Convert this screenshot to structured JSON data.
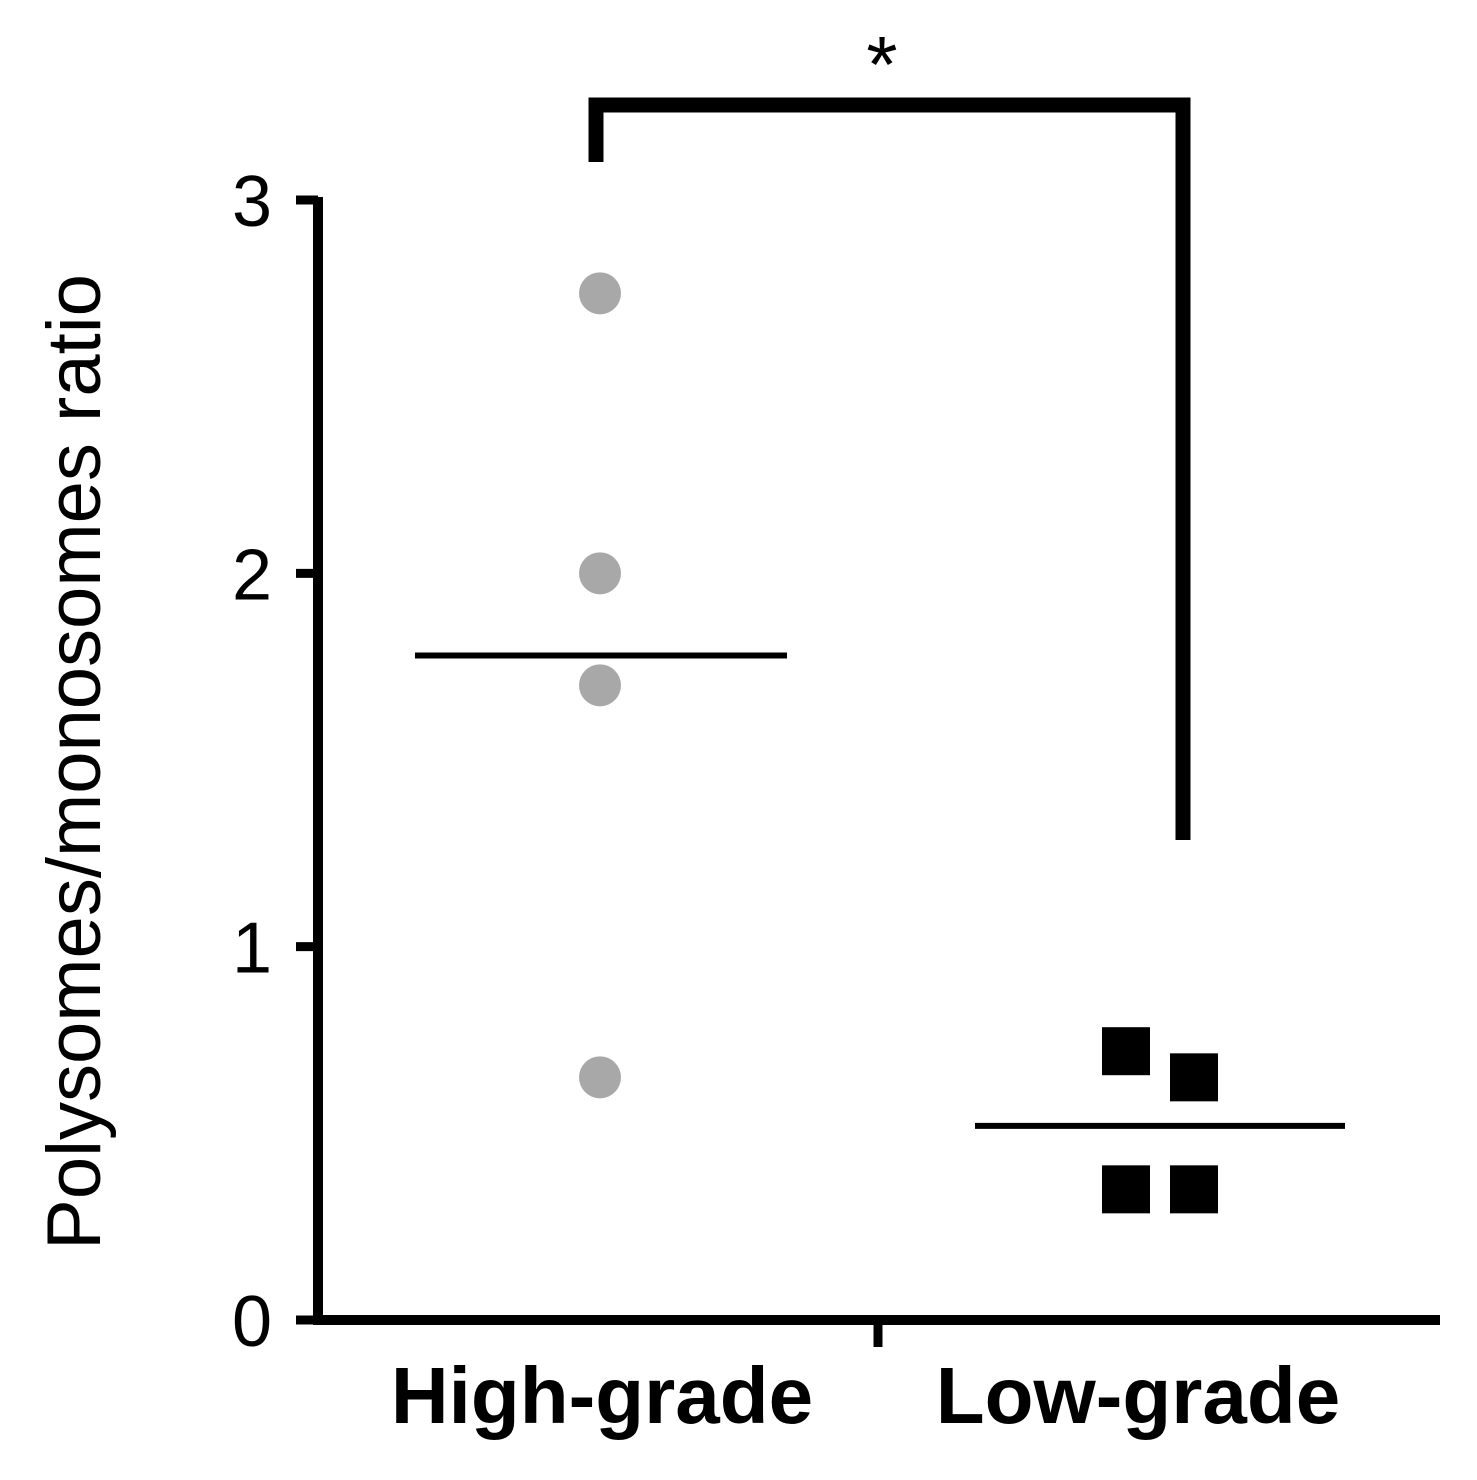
{
  "chart_data": {
    "type": "scatter",
    "ylabel": "Polysomes/monosomes ratio",
    "ylim": [
      0,
      3
    ],
    "yticks": [
      "0",
      "1",
      "2",
      "3"
    ],
    "categories": [
      "High-grade",
      "Low-grade"
    ],
    "grid": false,
    "series": [
      {
        "category": "High-grade",
        "marker": "circle",
        "color": "#a8a8a8",
        "values": [
          2.75,
          2.0,
          1.7,
          0.65
        ],
        "mean": 1.78
      },
      {
        "category": "Low-grade",
        "marker": "square",
        "color": "#000000",
        "values": [
          0.72,
          0.65,
          0.35,
          0.35
        ],
        "mean": 0.52
      }
    ],
    "significance": {
      "label": "*",
      "between": [
        "High-grade",
        "Low-grade"
      ]
    }
  }
}
